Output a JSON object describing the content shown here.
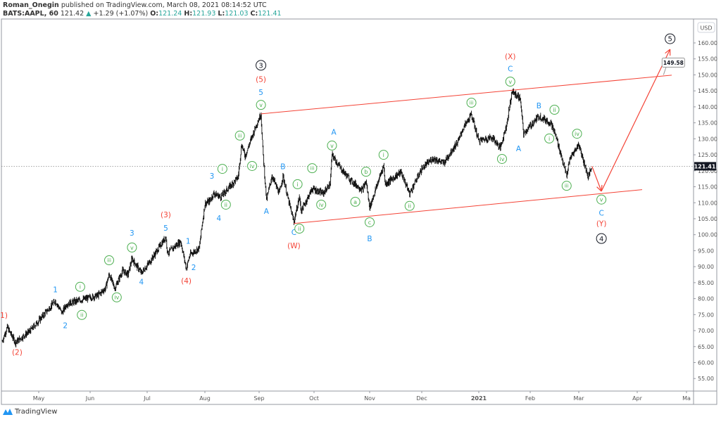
{
  "header": {
    "author": "Roman_Onegin",
    "published": "published on TradingView.com, March 08, 2021 08:14:52 UTC",
    "symbol": "BATS:AAPL, 60",
    "last": "121.42",
    "change": "+1.29 (+1.07%)",
    "o_label": "O:",
    "o": "121.24",
    "h_label": "H:",
    "h": "121.93",
    "l_label": "L:",
    "l": "121.03",
    "c_label": "C:",
    "c": "121.41"
  },
  "footer": {
    "brand": "TradingView"
  },
  "colors": {
    "up": "#26a69a",
    "red": "#f44336",
    "blue": "#2196f3",
    "green": "#4caf50",
    "black": "#131722"
  },
  "chart_data": {
    "type": "line",
    "title": "",
    "currency": "USD",
    "ylim": [
      52,
      167
    ],
    "yticks": [
      55,
      60,
      65,
      70,
      75,
      80,
      85,
      90,
      95,
      100,
      105,
      110,
      115,
      120,
      125,
      130,
      135,
      140,
      145,
      150,
      155,
      160
    ],
    "xticks": [
      {
        "label": "May",
        "date": "2020-05-01"
      },
      {
        "label": "Jun",
        "date": "2020-06-01"
      },
      {
        "label": "Jul",
        "date": "2020-07-01"
      },
      {
        "label": "Aug",
        "date": "2020-08-01"
      },
      {
        "label": "Sep",
        "date": "2020-09-01"
      },
      {
        "label": "Oct",
        "date": "2020-10-01"
      },
      {
        "label": "Nov",
        "date": "2020-11-01"
      },
      {
        "label": "Dec",
        "date": "2020-12-01"
      },
      {
        "label": "2021",
        "date": "2021-01-01"
      },
      {
        "label": "Feb",
        "date": "2021-02-01"
      },
      {
        "label": "Mar",
        "date": "2021-03-01"
      },
      {
        "label": "Apr",
        "date": "2021-04-01"
      },
      {
        "label": "Ma",
        "date": "2021-05-01"
      }
    ],
    "last_price": "121.41",
    "last_value": 121.41,
    "price_path": [
      [
        "2020-04-09",
        66.7
      ],
      [
        "2020-04-12",
        71
      ],
      [
        "2020-04-17",
        66.3
      ],
      [
        "2020-04-26",
        70
      ],
      [
        "2020-05-11",
        79.3
      ],
      [
        "2020-05-15",
        75.5
      ],
      [
        "2020-05-18",
        78.4
      ],
      [
        "2020-06-05",
        81
      ],
      [
        "2020-06-09",
        83.2
      ],
      [
        "2020-06-11",
        87.6
      ],
      [
        "2020-06-14",
        83.2
      ],
      [
        "2020-06-18",
        88.7
      ],
      [
        "2020-06-21",
        87.6
      ],
      [
        "2020-06-23",
        92.5
      ],
      [
        "2020-06-28",
        88
      ],
      [
        "2020-07-03",
        92
      ],
      [
        "2020-07-11",
        99.3
      ],
      [
        "2020-07-12",
        94.2
      ],
      [
        "2020-07-19",
        98
      ],
      [
        "2020-07-22",
        89.4
      ],
      [
        "2020-07-24",
        93.8
      ],
      [
        "2020-07-29",
        95.8
      ],
      [
        "2020-07-30",
        100.8
      ],
      [
        "2020-08-01",
        109.6
      ],
      [
        "2020-08-04",
        110.7
      ],
      [
        "2020-08-06",
        112.9
      ],
      [
        "2020-08-10",
        111.8
      ],
      [
        "2020-08-20",
        118
      ],
      [
        "2020-08-22",
        128.3
      ],
      [
        "2020-08-24",
        124.6
      ],
      [
        "2020-08-30",
        133.8
      ],
      [
        "2020-09-02",
        137.8
      ],
      [
        "2020-09-03",
        126.8
      ],
      [
        "2020-09-05",
        110.7
      ],
      [
        "2020-09-08",
        118.4
      ],
      [
        "2020-09-12",
        112.9
      ],
      [
        "2020-09-14",
        118.4
      ],
      [
        "2020-09-17",
        110.7
      ],
      [
        "2020-09-20",
        104
      ],
      [
        "2020-09-23",
        111.8
      ],
      [
        "2020-09-24",
        107.4
      ],
      [
        "2020-09-30",
        114.4
      ],
      [
        "2020-10-06",
        112.9
      ],
      [
        "2020-10-10",
        115.8
      ],
      [
        "2020-10-11",
        125
      ],
      [
        "2020-10-16",
        120.6
      ],
      [
        "2020-10-22",
        116.7
      ],
      [
        "2020-10-28",
        114
      ],
      [
        "2020-10-30",
        116.7
      ],
      [
        "2020-11-01",
        108.5
      ],
      [
        "2020-11-05",
        115.1
      ],
      [
        "2020-11-09",
        121.7
      ],
      [
        "2020-11-10",
        115.8
      ],
      [
        "2020-11-19",
        119.6
      ],
      [
        "2020-11-24",
        112.9
      ],
      [
        "2020-12-01",
        120.6
      ],
      [
        "2020-12-07",
        123.9
      ],
      [
        "2020-12-13",
        122.4
      ],
      [
        "2020-12-17",
        126.1
      ],
      [
        "2020-12-21",
        129.4
      ],
      [
        "2020-12-23",
        132.7
      ],
      [
        "2020-12-28",
        137.6
      ],
      [
        "2021-01-01",
        129.4
      ],
      [
        "2021-01-09",
        130.5
      ],
      [
        "2021-01-14",
        127.2
      ],
      [
        "2021-01-18",
        134.9
      ],
      [
        "2021-01-21",
        144.8
      ],
      [
        "2021-01-26",
        142.6
      ],
      [
        "2021-01-28",
        131.6
      ],
      [
        "2021-02-06",
        137.1
      ],
      [
        "2021-02-13",
        134.9
      ],
      [
        "2021-02-16",
        130.5
      ],
      [
        "2021-02-22",
        118.4
      ],
      [
        "2021-02-24",
        123.9
      ],
      [
        "2021-03-01",
        128.3
      ],
      [
        "2021-03-06",
        118
      ],
      [
        "2021-03-08",
        121.4
      ]
    ],
    "channel": {
      "upper": [
        [
          "2020-09-02",
          137.8
        ],
        [
          "2021-04-22",
          149.9
        ]
      ],
      "lower": [
        [
          "2020-09-20",
          103.5
        ],
        [
          "2021-04-04",
          114.1
        ]
      ]
    },
    "projection": [
      [
        "2021-03-08",
        121.4
      ],
      [
        "2021-03-13",
        113.6
      ],
      [
        "2021-04-21",
        158
      ]
    ],
    "target_label": {
      "text": "149.58",
      "date": "2021-04-17",
      "price": 150
    },
    "wave_labels": [
      {
        "t": "1)",
        "d": "2020-04-10",
        "p": 74.8,
        "s": "red"
      },
      {
        "t": "(2)",
        "d": "2020-04-18",
        "p": 63.2,
        "s": "red"
      },
      {
        "t": "1",
        "d": "2020-05-11",
        "p": 82.8,
        "s": "blue"
      },
      {
        "t": "2",
        "d": "2020-05-17",
        "p": 71.6,
        "s": "blue"
      },
      {
        "t": "i",
        "d": "2020-05-26",
        "p": 83.7,
        "s": "green"
      },
      {
        "t": "ii",
        "d": "2020-05-27",
        "p": 74.9,
        "s": "green"
      },
      {
        "t": "iii",
        "d": "2020-06-11",
        "p": 92,
        "s": "green"
      },
      {
        "t": "iv",
        "d": "2020-06-15",
        "p": 80.4,
        "s": "green"
      },
      {
        "t": "v",
        "d": "2020-06-23",
        "p": 96,
        "s": "green"
      },
      {
        "t": "3",
        "d": "2020-06-23",
        "p": 100.6,
        "s": "blue"
      },
      {
        "t": "4",
        "d": "2020-06-28",
        "p": 85.2,
        "s": "blue"
      },
      {
        "t": "5",
        "d": "2020-07-11",
        "p": 102.1,
        "s": "blue"
      },
      {
        "t": "(3)",
        "d": "2020-07-11",
        "p": 106.3,
        "s": "red"
      },
      {
        "t": "1",
        "d": "2020-07-23",
        "p": 98,
        "s": "blue"
      },
      {
        "t": "2",
        "d": "2020-07-26",
        "p": 89.8,
        "s": "blue"
      },
      {
        "t": "(4)",
        "d": "2020-07-22",
        "p": 85.6,
        "s": "red"
      },
      {
        "t": "3",
        "d": "2020-08-05",
        "p": 118.4,
        "s": "blue"
      },
      {
        "t": "4",
        "d": "2020-08-09",
        "p": 105.2,
        "s": "blue"
      },
      {
        "t": "i",
        "d": "2020-08-11",
        "p": 120.6,
        "s": "green"
      },
      {
        "t": "ii",
        "d": "2020-08-13",
        "p": 109.4,
        "s": "green"
      },
      {
        "t": "iii",
        "d": "2020-08-21",
        "p": 131,
        "s": "green"
      },
      {
        "t": "iv",
        "d": "2020-08-28",
        "p": 121.5,
        "s": "green"
      },
      {
        "t": "v",
        "d": "2020-09-02",
        "p": 140.6,
        "s": "green"
      },
      {
        "t": "5",
        "d": "2020-09-02",
        "p": 144.6,
        "s": "blue"
      },
      {
        "t": "(5)",
        "d": "2020-09-02",
        "p": 148.6,
        "s": "red"
      },
      {
        "t": "3",
        "d": "2020-09-02",
        "p": 153,
        "s": "black"
      },
      {
        "t": "A",
        "d": "2020-09-05",
        "p": 107.4,
        "s": "blue"
      },
      {
        "t": "B",
        "d": "2020-09-14",
        "p": 121.3,
        "s": "blue"
      },
      {
        "t": "i",
        "d": "2020-09-22",
        "p": 115.8,
        "s": "green"
      },
      {
        "t": "C",
        "d": "2020-09-20",
        "p": 100.8,
        "s": "blue"
      },
      {
        "t": "ii",
        "d": "2020-09-23",
        "p": 101.9,
        "s": "green"
      },
      {
        "t": "(W)",
        "d": "2020-09-20",
        "p": 96.6,
        "s": "red"
      },
      {
        "t": "iii",
        "d": "2020-09-30",
        "p": 120.8,
        "s": "green"
      },
      {
        "t": "iv",
        "d": "2020-10-05",
        "p": 109.4,
        "s": "green"
      },
      {
        "t": "A",
        "d": "2020-10-12",
        "p": 132.1,
        "s": "blue"
      },
      {
        "t": "v",
        "d": "2020-10-11",
        "p": 127.9,
        "s": "green"
      },
      {
        "t": "b",
        "d": "2020-10-30",
        "p": 119.7,
        "s": "green"
      },
      {
        "t": "a",
        "d": "2020-10-24",
        "p": 110.3,
        "s": "green"
      },
      {
        "t": "c",
        "d": "2020-11-01",
        "p": 103.9,
        "s": "green"
      },
      {
        "t": "B",
        "d": "2020-11-01",
        "p": 98.8,
        "s": "blue"
      },
      {
        "t": "i",
        "d": "2020-11-09",
        "p": 125,
        "s": "green"
      },
      {
        "t": "ii",
        "d": "2020-11-24",
        "p": 109,
        "s": "green"
      },
      {
        "t": "iii",
        "d": "2020-12-28",
        "p": 141.3,
        "s": "green"
      },
      {
        "t": "iv",
        "d": "2021-01-15",
        "p": 123.7,
        "s": "green"
      },
      {
        "t": "(X)",
        "d": "2021-01-20",
        "p": 155.8,
        "s": "red"
      },
      {
        "t": "C",
        "d": "2021-01-20",
        "p": 151.9,
        "s": "blue"
      },
      {
        "t": "v",
        "d": "2021-01-20",
        "p": 147.9,
        "s": "green"
      },
      {
        "t": "A",
        "d": "2021-01-25",
        "p": 127,
        "s": "blue"
      },
      {
        "t": "B",
        "d": "2021-02-06",
        "p": 140.4,
        "s": "blue"
      },
      {
        "t": "ii",
        "d": "2021-02-15",
        "p": 139.1,
        "s": "green"
      },
      {
        "t": "i",
        "d": "2021-02-12",
        "p": 130.1,
        "s": "green"
      },
      {
        "t": "iv",
        "d": "2021-02-28",
        "p": 131.6,
        "s": "green"
      },
      {
        "t": "iii",
        "d": "2021-02-22",
        "p": 115.3,
        "s": "green"
      },
      {
        "t": "v",
        "d": "2021-03-13",
        "p": 111,
        "s": "green"
      },
      {
        "t": "C",
        "d": "2021-03-13",
        "p": 106.8,
        "s": "blue"
      },
      {
        "t": "(Y)",
        "d": "2021-03-13",
        "p": 103.5,
        "s": "red"
      },
      {
        "t": "4",
        "d": "2021-03-13",
        "p": 98.8,
        "s": "black"
      },
      {
        "t": "5",
        "d": "2021-04-21",
        "p": 161.3,
        "s": "black"
      }
    ]
  }
}
